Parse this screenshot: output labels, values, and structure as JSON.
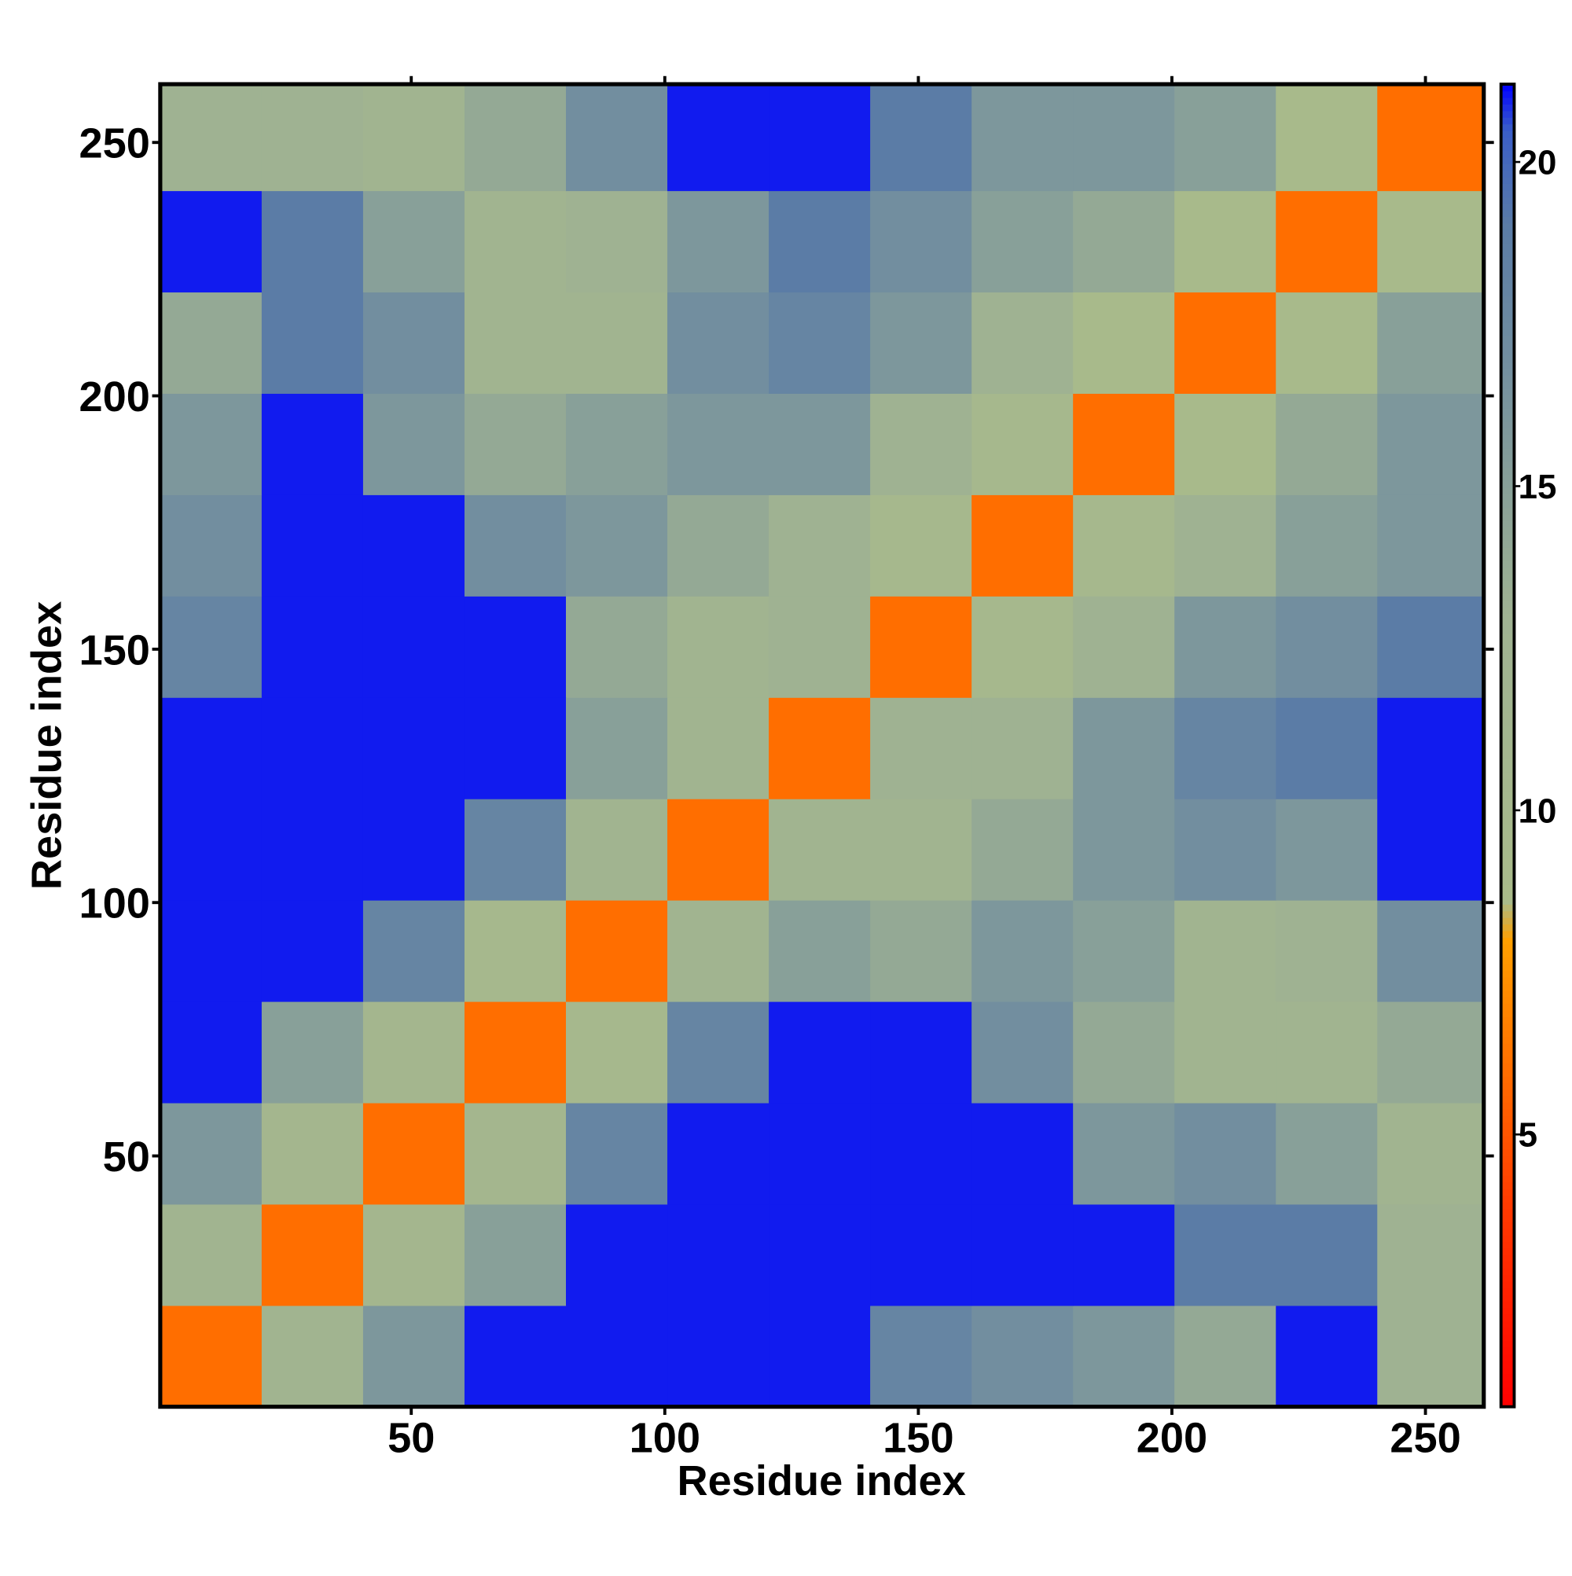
{
  "chart_data": {
    "type": "heatmap",
    "xlabel": "Residue index",
    "ylabel": "Residue index",
    "xbins": [
      0.5,
      20.5,
      40.5,
      60.5,
      80.5,
      100.5,
      120.5,
      140.5,
      160.5,
      180.5,
      200.5,
      220.5,
      240.5,
      261.5
    ],
    "ybins": [
      0.5,
      20.5,
      40.5,
      60.5,
      80.5,
      100.5,
      120.5,
      140.5,
      160.5,
      180.5,
      200.5,
      220.5,
      240.5,
      261.5
    ],
    "z": [
      [
        6,
        12,
        16,
        21,
        21,
        21,
        21,
        18,
        17,
        16,
        14,
        21,
        13
      ],
      [
        12,
        6,
        11,
        15,
        21,
        21,
        21,
        21,
        21,
        21,
        19,
        19,
        13
      ],
      [
        16,
        11,
        6,
        11,
        18,
        21,
        21,
        21,
        21,
        16,
        17,
        15,
        12
      ],
      [
        21,
        15,
        11,
        6,
        10,
        18,
        21,
        21,
        17,
        14,
        12,
        12,
        14
      ],
      [
        21,
        21,
        18,
        10,
        6,
        12,
        15,
        14,
        16,
        15,
        12,
        13,
        17
      ],
      [
        21,
        21,
        21,
        18,
        12,
        6,
        12,
        12,
        14,
        16,
        17,
        16,
        21
      ],
      [
        21,
        21,
        21,
        21,
        15,
        12,
        6,
        13,
        13,
        16,
        18,
        19,
        21
      ],
      [
        18,
        21,
        21,
        21,
        14,
        12,
        13,
        6,
        10,
        13,
        16,
        17,
        19
      ],
      [
        17,
        21,
        21,
        17,
        16,
        14,
        13,
        10,
        6,
        10,
        13,
        15,
        16
      ],
      [
        16,
        21,
        16,
        14,
        15,
        16,
        16,
        13,
        10,
        6,
        9,
        14,
        16
      ],
      [
        14,
        19,
        17,
        12,
        12,
        17,
        18,
        16,
        13,
        9,
        6,
        9,
        15
      ],
      [
        21,
        19,
        15,
        12,
        13,
        16,
        19,
        17,
        15,
        14,
        9,
        6,
        9
      ],
      [
        13,
        13,
        12,
        14,
        17,
        21,
        21,
        19,
        16,
        16,
        15,
        9,
        6
      ]
    ],
    "xlim": [
      0.5,
      261.5
    ],
    "ylim": [
      0.5,
      261.5
    ],
    "xticks": [
      50,
      100,
      150,
      200,
      250
    ],
    "yticks": [
      50,
      100,
      150,
      200,
      250
    ],
    "zlim": [
      0.8,
      21.2
    ],
    "zticks": [
      5,
      10,
      15,
      20
    ],
    "colorscale": [
      [
        0.8,
        "#ff0000"
      ],
      [
        4,
        "#ff3c00"
      ],
      [
        8,
        "#ffa000"
      ],
      [
        8.6,
        "#a9bb8a"
      ],
      [
        13,
        "#9fb292"
      ],
      [
        19,
        "#5b7ca6"
      ],
      [
        20.5,
        "#3a5ec8"
      ],
      [
        21.2,
        "#0000ff"
      ]
    ]
  }
}
